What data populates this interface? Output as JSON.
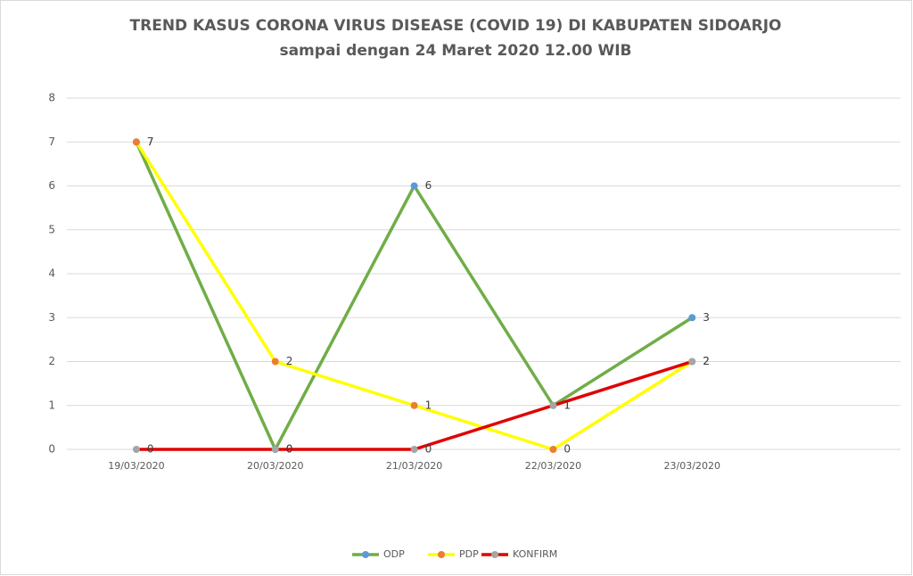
{
  "chart_data": {
    "type": "line",
    "title": "TREND KASUS CORONA VIRUS DISEASE (COVID 19) DI KABUPATEN SIDOARJO",
    "subtitle": "sampai dengan 24 Maret 2020 12.00 WIB",
    "categories": [
      "19/03/2020",
      "20/03/2020",
      "21/03/2020",
      "22/03/2020",
      "23/03/2020",
      null
    ],
    "series": [
      {
        "name": "ODP",
        "color": "#70ad47",
        "marker_color": "#5b9bd5",
        "values": [
          7,
          0,
          6,
          1,
          3,
          null
        ]
      },
      {
        "name": "PDP",
        "color": "#ffff00",
        "marker_color": "#ed7d31",
        "values": [
          7,
          2,
          1,
          0,
          2,
          null
        ]
      },
      {
        "name": "KONFIRM",
        "color": "#e00000",
        "marker_color": "#a5a5a5",
        "values": [
          0,
          0,
          0,
          1,
          2,
          null
        ]
      }
    ],
    "ylim": [
      0,
      8
    ],
    "yticks": [
      0,
      1,
      2,
      3,
      4,
      5,
      6,
      7,
      8
    ],
    "grid": true,
    "legend": "bottom",
    "data_labels": true
  }
}
